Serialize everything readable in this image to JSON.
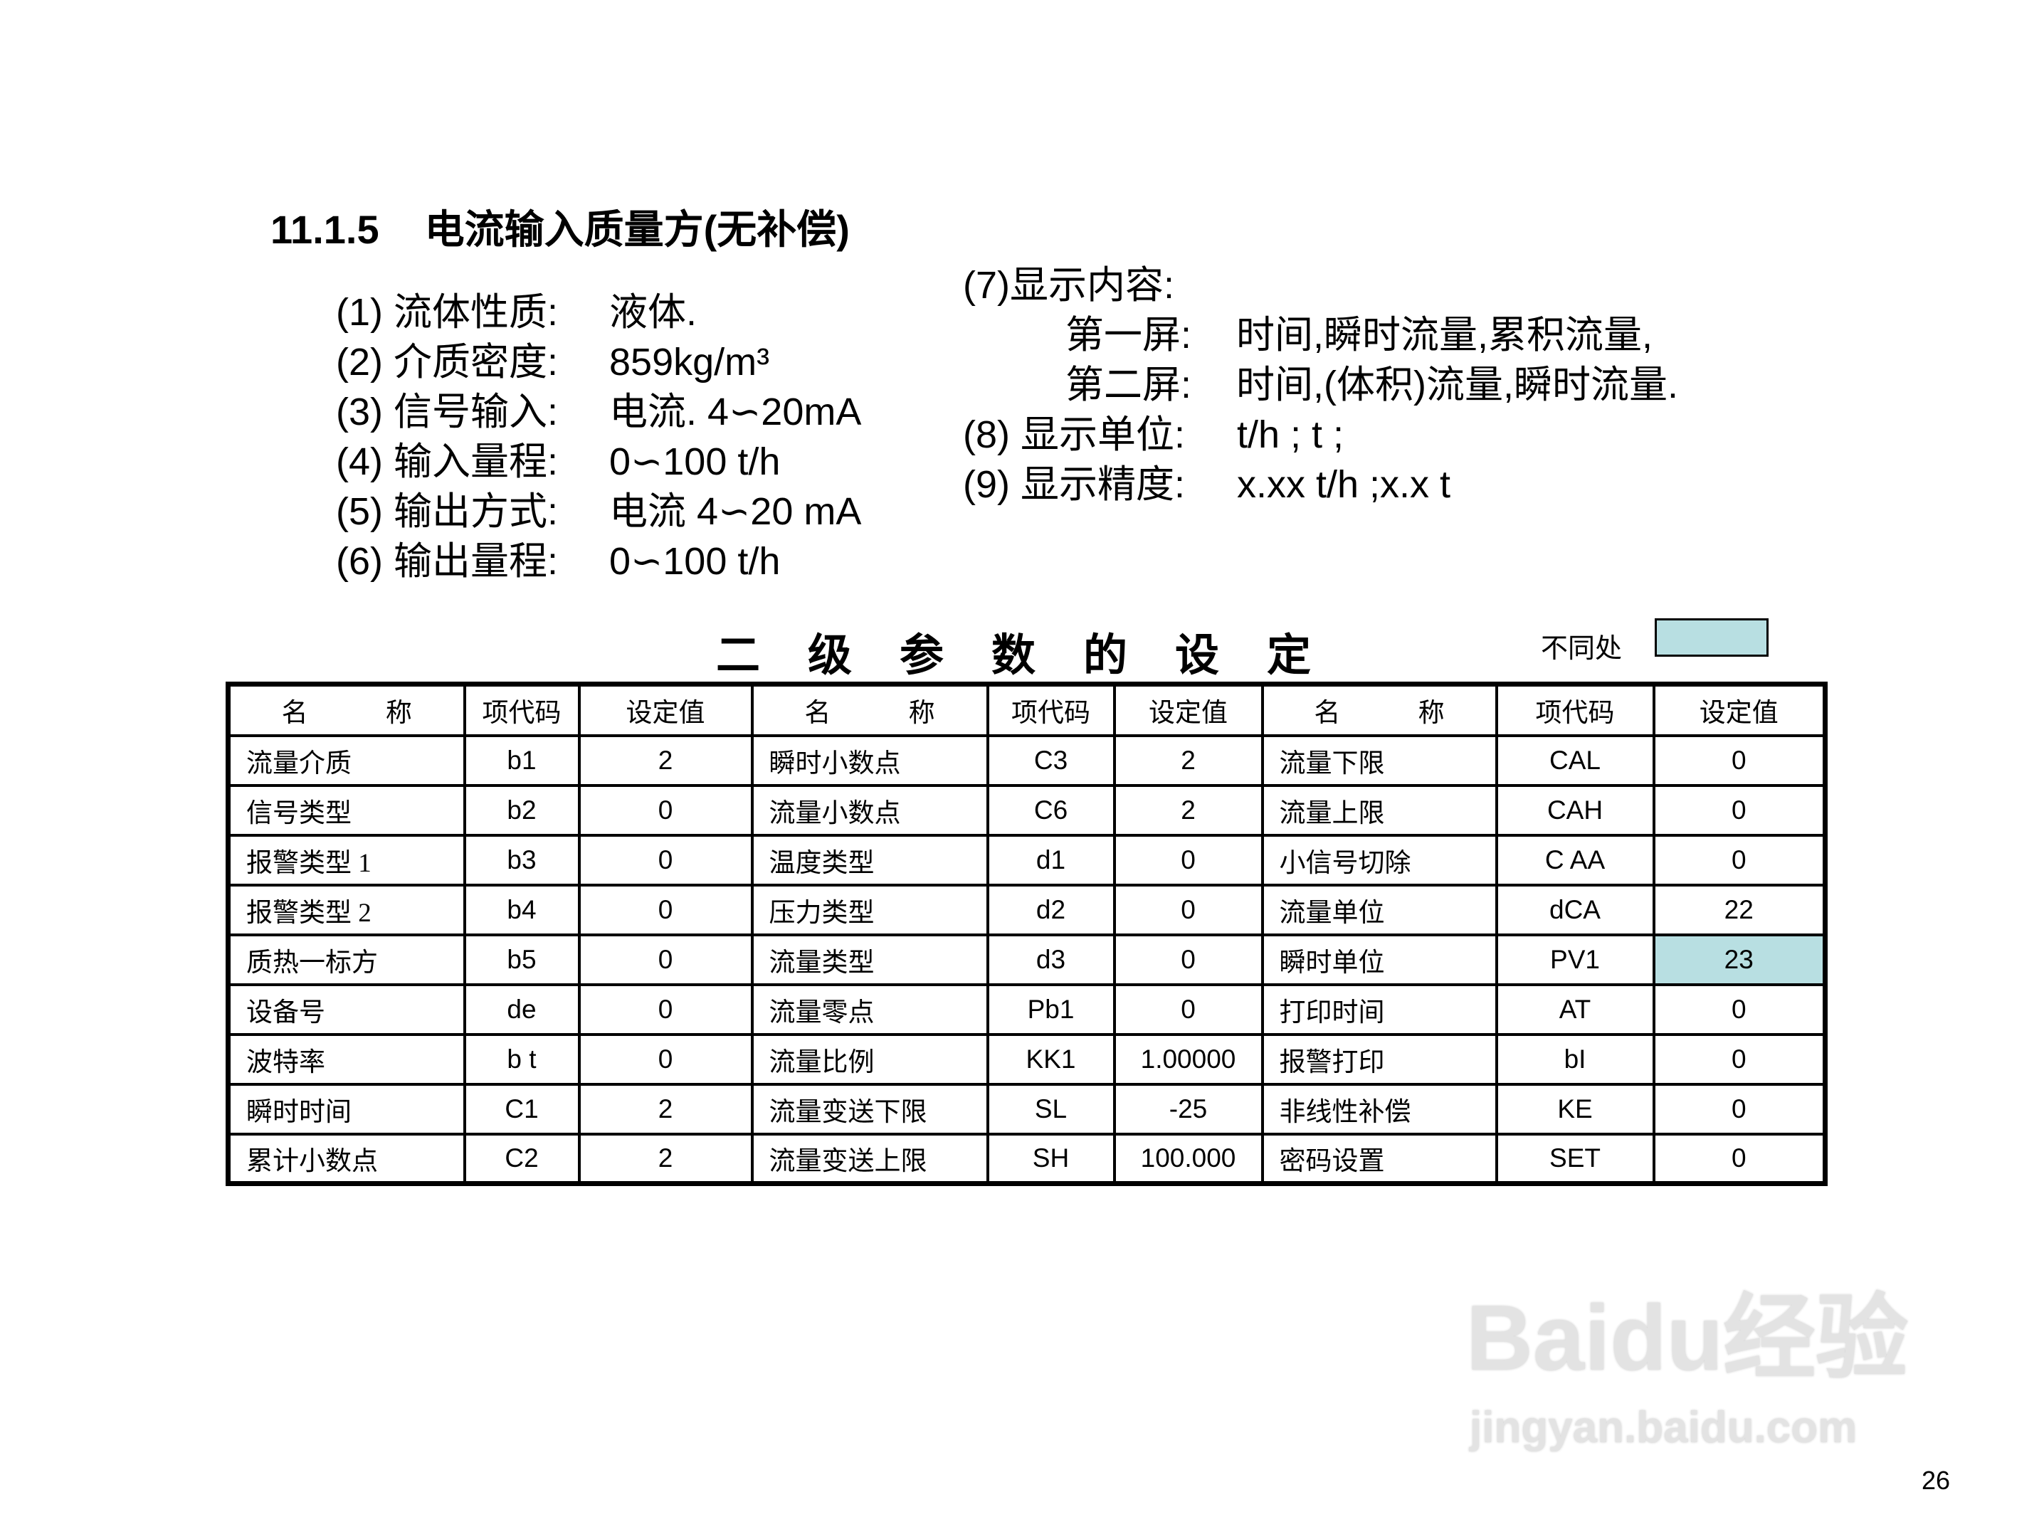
{
  "section": {
    "number": "11.1.5",
    "title": "电流输入质量方(无补偿)"
  },
  "left_specs": [
    {
      "label": "(1) 流体性质:",
      "value": "液体."
    },
    {
      "label": "(2) 介质密度:",
      "value": "859kg/m³"
    },
    {
      "label": "(3) 信号输入:",
      "value": "电流. 4∽20mA"
    },
    {
      "label": "(4) 输入量程:",
      "value": "0∽100  t/h"
    },
    {
      "label": "(5) 输出方式:",
      "value": "电流 4∽20 mA"
    },
    {
      "label": "(6) 输出量程:",
      "value": "0∽100 t/h"
    }
  ],
  "right_specs": {
    "display_content_label": "(7)显示内容:",
    "screens": [
      {
        "label": "第一屏:",
        "value": "时间,瞬时流量,累积流量,"
      },
      {
        "label": "第二屏:",
        "value": "时间,(体积)流量,瞬时流量."
      }
    ],
    "items": [
      {
        "label": "(8) 显示单位:",
        "value": "t/h ; t ;"
      },
      {
        "label": "(9) 显示精度:",
        "value": "x.xx t/h ;x.x t"
      }
    ]
  },
  "table_title": [
    "二",
    "级",
    "参",
    "数",
    "的",
    "设",
    "定"
  ],
  "legend": {
    "label": "不同处",
    "color": "#b8dfe2"
  },
  "table": {
    "headers": [
      "名 称",
      "项代码",
      "设定值",
      "名 称",
      "项代码",
      "设定值",
      "名 称",
      "项代码",
      "设定值"
    ],
    "rows": [
      [
        "流量介质",
        "b1",
        "2",
        "瞬时小数点",
        "C3",
        "2",
        "流量下限",
        "CAL",
        "0"
      ],
      [
        "信号类型",
        "b2",
        "0",
        "流量小数点",
        "C6",
        "2",
        "流量上限",
        "CAH",
        "0"
      ],
      [
        "报警类型 1",
        "b3",
        "0",
        "温度类型",
        "d1",
        "0",
        "小信号切除",
        "C AA",
        "0"
      ],
      [
        "报警类型 2",
        "b4",
        "0",
        "压力类型",
        "d2",
        "0",
        "流量单位",
        "dCA",
        "22"
      ],
      [
        "质热一标方",
        "b5",
        "0",
        "流量类型",
        "d3",
        "0",
        "瞬时单位",
        "PV1",
        "23"
      ],
      [
        "设备号",
        "de",
        "0",
        "流量零点",
        "Pb1",
        "0",
        "打印时间",
        "AT",
        "0"
      ],
      [
        "波特率",
        "b t",
        "0",
        "流量比例",
        "KK1",
        "1.00000",
        "报警打印",
        "bI",
        "0"
      ],
      [
        "瞬时时间",
        "C1",
        "2",
        "流量变送下限",
        "SL",
        "-25",
        "非线性补偿",
        "KE",
        "0"
      ],
      [
        "累计小数点",
        "C2",
        "2",
        "流量变送上限",
        "SH",
        "100.000",
        "密码设置",
        "SET",
        "0"
      ]
    ],
    "highlighted_cell": {
      "row": 4,
      "col": 8
    }
  },
  "watermark": {
    "logo": "Baidu经验",
    "url_text": "jingyan.baidu.com"
  },
  "page_number": "26"
}
